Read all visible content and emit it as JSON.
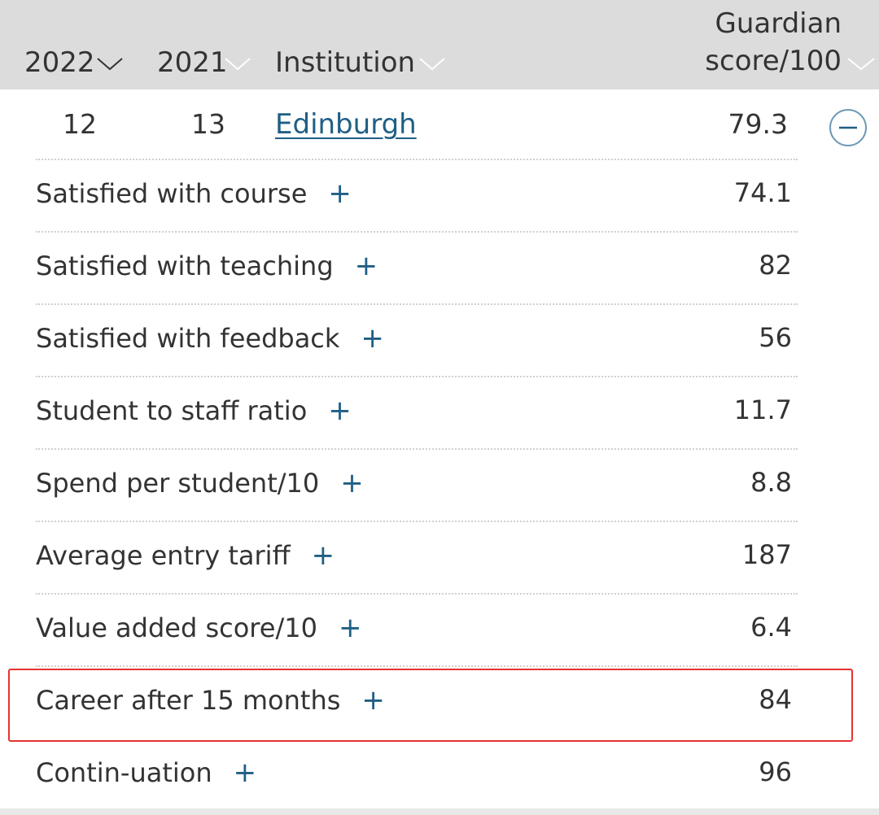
{
  "header": {
    "col_2022": "2022",
    "col_2021": "2021",
    "col_institution": "Institution",
    "col_score_line1": "Guardian",
    "col_score_line2": "score/100"
  },
  "row": {
    "rank_2022": "12",
    "rank_2021": "13",
    "institution": "Edinburgh",
    "score": "79.3"
  },
  "details": [
    {
      "label": "Satisfied with course",
      "value": "74.1"
    },
    {
      "label": "Satisfied with teaching",
      "value": "82"
    },
    {
      "label": "Satisfied with feedback",
      "value": "56"
    },
    {
      "label": "Student to staff ratio",
      "value": "11.7"
    },
    {
      "label": "Spend per student/10",
      "value": "8.8"
    },
    {
      "label": "Average entry tariff",
      "value": "187"
    },
    {
      "label": "Value added score/10",
      "value": "6.4"
    },
    {
      "label": "Career after 15 months",
      "value": "84"
    },
    {
      "label": "Contin-uation",
      "value": "96"
    }
  ],
  "plus_glyph": "+",
  "colors": {
    "header_bg": "#dcdcdc",
    "link": "#1f5f85",
    "highlight": "#e53333"
  }
}
